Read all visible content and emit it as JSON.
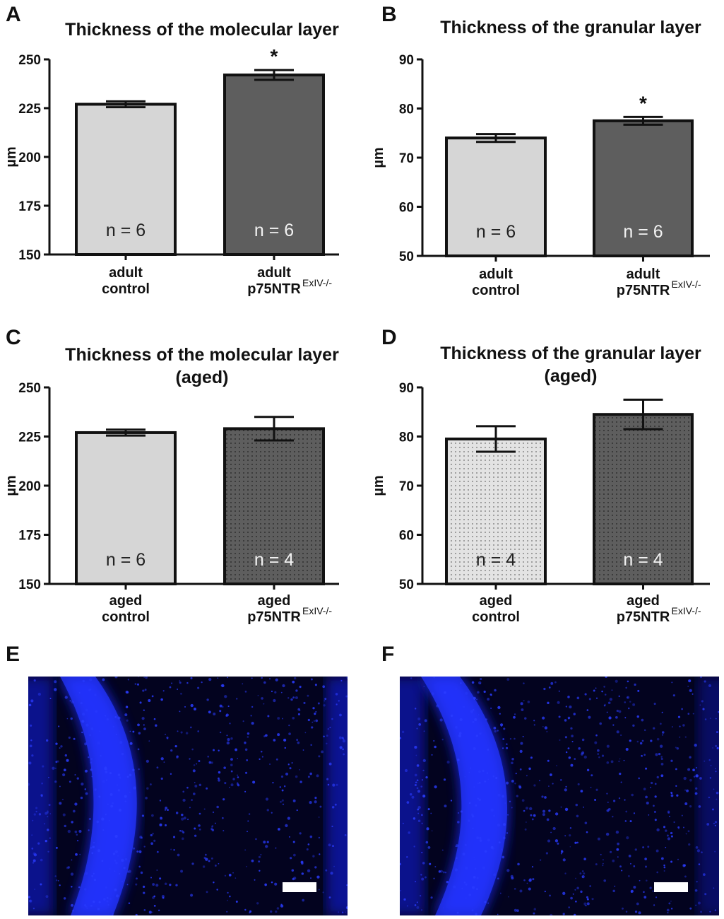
{
  "panels": [
    "A",
    "B",
    "C",
    "D",
    "E",
    "F"
  ],
  "chart_data": [
    {
      "type": "bar",
      "panel": "A",
      "title": [
        "Thickness of the molecular layer"
      ],
      "ylabel": "µm",
      "ylim": [
        150,
        250
      ],
      "yticks": [
        150,
        175,
        200,
        225,
        250
      ],
      "categories": [
        {
          "line1": "adult",
          "line2": "control",
          "sup": ""
        },
        {
          "line1": "adult",
          "line2": "p75NTR",
          "sup": "ExIV-/-"
        }
      ],
      "values": [
        227,
        242
      ],
      "errors": [
        1.5,
        2.5
      ],
      "n_labels": [
        "n = 6",
        "n = 6"
      ],
      "significance": [
        "",
        "*"
      ],
      "fills": [
        "solid-light",
        "solid-dark"
      ]
    },
    {
      "type": "bar",
      "panel": "B",
      "title": [
        "Thickness of the granular layer"
      ],
      "ylabel": "µm",
      "ylim": [
        50,
        90
      ],
      "yticks": [
        50,
        60,
        70,
        80,
        90
      ],
      "categories": [
        {
          "line1": "adult",
          "line2": "control",
          "sup": ""
        },
        {
          "line1": "adult",
          "line2": "p75NTR",
          "sup": "ExIV-/-"
        }
      ],
      "values": [
        74,
        77.5
      ],
      "errors": [
        0.8,
        0.8
      ],
      "n_labels": [
        "n = 6",
        "n = 6"
      ],
      "significance": [
        "",
        "*"
      ],
      "fills": [
        "solid-light",
        "solid-dark"
      ]
    },
    {
      "type": "bar",
      "panel": "C",
      "title": [
        "Thickness of the molecular layer",
        "(aged)"
      ],
      "ylabel": "µm",
      "ylim": [
        150,
        250
      ],
      "yticks": [
        150,
        175,
        200,
        225,
        250
      ],
      "categories": [
        {
          "line1": "aged",
          "line2": "control",
          "sup": ""
        },
        {
          "line1": "aged",
          "line2": "p75NTR",
          "sup": "ExIV-/-"
        }
      ],
      "values": [
        227,
        229
      ],
      "errors": [
        1.5,
        6
      ],
      "n_labels": [
        "n = 6",
        "n = 4"
      ],
      "significance": [
        "",
        ""
      ],
      "fills": [
        "solid-light",
        "dotted-dark"
      ]
    },
    {
      "type": "bar",
      "panel": "D",
      "title": [
        "Thickness of the granular layer",
        "(aged)"
      ],
      "ylabel": "µm",
      "ylim": [
        50,
        90
      ],
      "yticks": [
        50,
        60,
        70,
        80,
        90
      ],
      "categories": [
        {
          "line1": "aged",
          "line2": "control",
          "sup": ""
        },
        {
          "line1": "aged",
          "line2": "p75NTR",
          "sup": "ExIV-/-"
        }
      ],
      "values": [
        79.5,
        84.5
      ],
      "errors": [
        2.6,
        3
      ],
      "n_labels": [
        "n = 4",
        "n = 4"
      ],
      "significance": [
        "",
        ""
      ],
      "fills": [
        "dotted-light",
        "dotted-dark"
      ]
    }
  ],
  "images": [
    {
      "panel": "E",
      "content": "fluorescence-micrograph",
      "color": "#1a2cff"
    },
    {
      "panel": "F",
      "content": "fluorescence-micrograph",
      "color": "#1a2cff"
    }
  ],
  "colors": {
    "bar_light": "#d6d6d6",
    "bar_dark": "#5e5e5e",
    "n_text_on_light": "#222222",
    "n_text_on_dark": "#f2f2f2",
    "axis": "#111111",
    "micrograph_bg": "#03031f",
    "nuclei": "#2a3cff",
    "scale_bar": "#ffffff"
  }
}
